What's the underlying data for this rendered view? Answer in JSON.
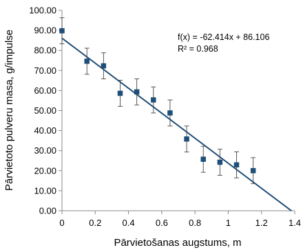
{
  "chart_data": {
    "type": "scatter",
    "title": "",
    "xlabel": "Pārvietošanas augstums, m",
    "ylabel": "Pārvietoto pulveru masa, g/impulse",
    "xlim": [
      0,
      1.4
    ],
    "ylim": [
      0,
      100
    ],
    "x_ticks": [
      "0",
      "0.2",
      "0.4",
      "0.6",
      "0.8",
      "1",
      "1.2",
      "1.4"
    ],
    "y_ticks": [
      "0.00",
      "10.00",
      "20.00",
      "30.00",
      "40.00",
      "50.00",
      "60.00",
      "70.00",
      "80.00",
      "90.00",
      "100.00"
    ],
    "grid": false,
    "legend": "none",
    "marker_color": "#1F4E79",
    "trendline_color": "#1F4E79",
    "points": [
      {
        "x": 0.0,
        "y": 89.8,
        "err": 6.5
      },
      {
        "x": 0.15,
        "y": 74.6,
        "err": 6.5
      },
      {
        "x": 0.25,
        "y": 72.3,
        "err": 6.5
      },
      {
        "x": 0.35,
        "y": 58.6,
        "err": 6.5
      },
      {
        "x": 0.45,
        "y": 59.3,
        "err": 6.5
      },
      {
        "x": 0.55,
        "y": 55.3,
        "err": 6.5
      },
      {
        "x": 0.65,
        "y": 48.8,
        "err": 6.5
      },
      {
        "x": 0.75,
        "y": 35.8,
        "err": 6.5
      },
      {
        "x": 0.85,
        "y": 25.7,
        "err": 6.5
      },
      {
        "x": 0.95,
        "y": 24.2,
        "err": 6.5
      },
      {
        "x": 1.05,
        "y": 22.9,
        "err": 6.5
      },
      {
        "x": 1.15,
        "y": 20.0,
        "err": 6.5
      }
    ],
    "trendline": {
      "slope": -62.414,
      "intercept": 86.106,
      "x_range": [
        0,
        1.38
      ],
      "equation_label": "f(x) = -62.414x + 86.106",
      "r2_label": "R² = 0.968"
    }
  }
}
